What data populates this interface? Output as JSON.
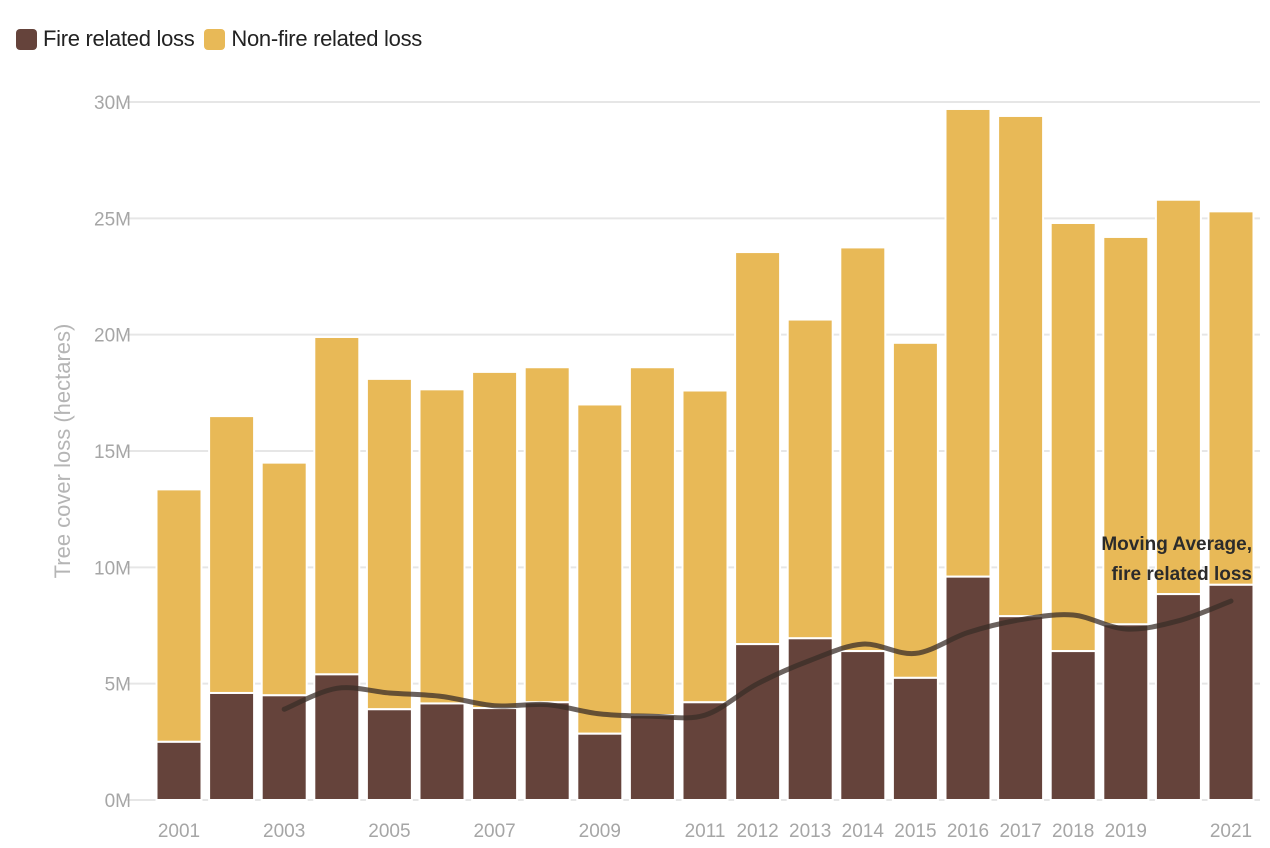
{
  "legend": {
    "fire_label": "Fire related loss",
    "nonfire_label": "Non-fire related loss"
  },
  "colors": {
    "fire": "#65433b",
    "nonfire": "#e8b957",
    "moving_average": "#3a2e28",
    "grid": "#e6e6e6",
    "tick_text": "#a6a6a6"
  },
  "chart_data": {
    "type": "bar",
    "stacked": true,
    "ylabel": "Tree cover loss (hectares)",
    "ylim": [
      0,
      30000000
    ],
    "yticks": [
      0,
      5000000,
      10000000,
      15000000,
      20000000,
      25000000,
      30000000
    ],
    "ytick_labels": [
      "0M",
      "5M",
      "10M",
      "15M",
      "20M",
      "25M",
      "30M"
    ],
    "categories": [
      "2001",
      "2002",
      "2003",
      "2004",
      "2005",
      "2006",
      "2007",
      "2008",
      "2009",
      "2010",
      "2011",
      "2012",
      "2013",
      "2014",
      "2015",
      "2016",
      "2017",
      "2018",
      "2019",
      "2020",
      "2021"
    ],
    "xtick_labels": [
      "2001",
      "",
      "2003",
      "",
      "2005",
      "",
      "2007",
      "",
      "2009",
      "",
      "2011",
      "2012",
      "2013",
      "2014",
      "2015",
      "2016",
      "2017",
      "2018",
      "2019",
      "",
      "2021"
    ],
    "grid": true,
    "legend_position": "top-left",
    "series": [
      {
        "name": "Fire related loss",
        "values": [
          2500000,
          4600000,
          4500000,
          5400000,
          3900000,
          4150000,
          3950000,
          4200000,
          2850000,
          3650000,
          4200000,
          6700000,
          6950000,
          6400000,
          5250000,
          9600000,
          7900000,
          6400000,
          7550000,
          8850000,
          9250000
        ]
      },
      {
        "name": "Non-fire related loss",
        "values": [
          10850000,
          11900000,
          10000000,
          14500000,
          14200000,
          13500000,
          14450000,
          14400000,
          14150000,
          14950000,
          13400000,
          16850000,
          13700000,
          17350000,
          14400000,
          20100000,
          21500000,
          18400000,
          16650000,
          16950000,
          16050000
        ]
      }
    ],
    "moving_average": {
      "label_line1": "Moving Average,",
      "label_line2": "fire related loss",
      "x": [
        "2003",
        "2004",
        "2005",
        "2006",
        "2007",
        "2008",
        "2009",
        "2010",
        "2011",
        "2012",
        "2013",
        "2014",
        "2015",
        "2016",
        "2017",
        "2018",
        "2019",
        "2020",
        "2021"
      ],
      "values": [
        3900000,
        4800000,
        4600000,
        4450000,
        4050000,
        4100000,
        3700000,
        3600000,
        3650000,
        5000000,
        6000000,
        6700000,
        6300000,
        7200000,
        7750000,
        7950000,
        7350000,
        7700000,
        8550000
      ]
    }
  }
}
